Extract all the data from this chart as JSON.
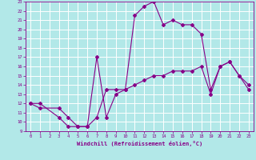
{
  "xlabel": "Windchill (Refroidissement éolien,°C)",
  "bg_color": "#b2e8e8",
  "grid_color": "#ffffff",
  "line_color": "#880088",
  "xlim": [
    -0.5,
    23.5
  ],
  "ylim": [
    9,
    23
  ],
  "xticks": [
    0,
    1,
    2,
    3,
    4,
    5,
    6,
    7,
    8,
    9,
    10,
    11,
    12,
    13,
    14,
    15,
    16,
    17,
    18,
    19,
    20,
    21,
    22,
    23
  ],
  "yticks": [
    9,
    10,
    11,
    12,
    13,
    14,
    15,
    16,
    17,
    18,
    19,
    20,
    21,
    22,
    23
  ],
  "line1_x": [
    0,
    1,
    3,
    4,
    5,
    6,
    7,
    8,
    9,
    10,
    11,
    12,
    13,
    14,
    15,
    16,
    17,
    18,
    19,
    20,
    21,
    22,
    23
  ],
  "line1_y": [
    12,
    12,
    10.5,
    9.5,
    9.5,
    9.5,
    10.5,
    13.5,
    13.5,
    13.5,
    21.5,
    22.5,
    23,
    20.5,
    21,
    20.5,
    20.5,
    19.5,
    13.5,
    16,
    16.5,
    15,
    14
  ],
  "line2_x": [
    0,
    1,
    3,
    4,
    5,
    6,
    7,
    8,
    9,
    10,
    11,
    12,
    13,
    14,
    15,
    16,
    17,
    18,
    19,
    20,
    21,
    22,
    23
  ],
  "line2_y": [
    12,
    11.5,
    11.5,
    10.5,
    9.5,
    9.5,
    17,
    10.5,
    13,
    13.5,
    14,
    14.5,
    15,
    15,
    15.5,
    15.5,
    15.5,
    16,
    13,
    16,
    16.5,
    15,
    13.5
  ]
}
